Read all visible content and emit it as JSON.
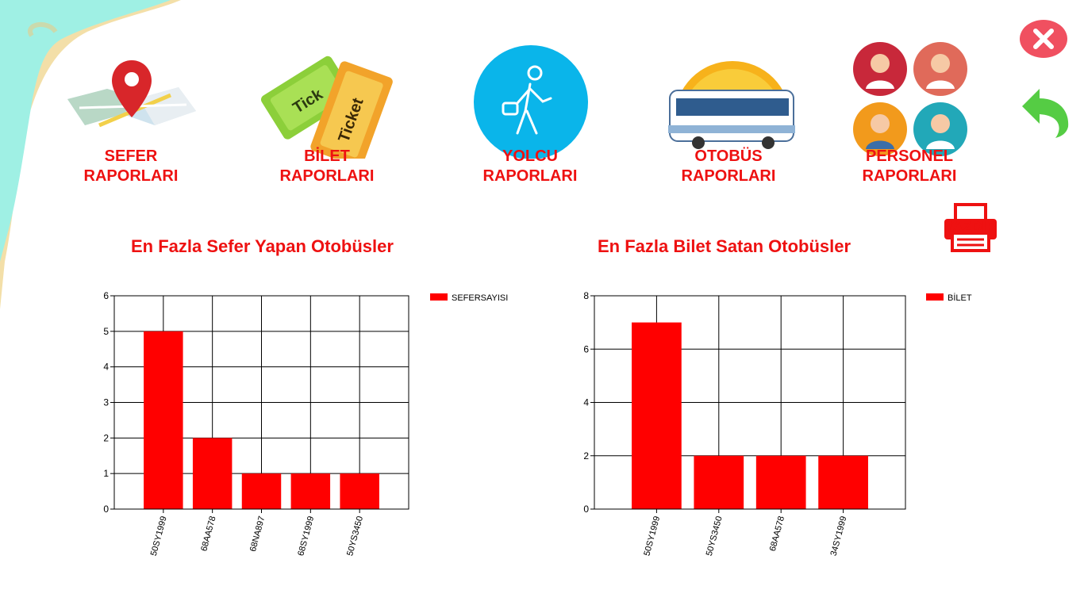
{
  "nav": {
    "items": [
      {
        "id": "sefer",
        "line1": "SEFER",
        "line2": "RAPORLARI",
        "icon": "map-pin-icon"
      },
      {
        "id": "bilet",
        "line1": "BİLET",
        "line2": "RAPORLARI",
        "icon": "ticket-icon"
      },
      {
        "id": "yolcu",
        "line1": "YOLCU",
        "line2": "RAPORLARI",
        "icon": "traveler-icon"
      },
      {
        "id": "otobus",
        "line1": "OTOBÜS",
        "line2": "RAPORLARI",
        "icon": "bus-icon"
      },
      {
        "id": "personel",
        "line1": "PERSONEL",
        "line2": "RAPORLARI",
        "icon": "staff-icon"
      }
    ]
  },
  "controls": {
    "print_label": "YAZDIR",
    "close_icon": "close-icon",
    "back_icon": "back-arrow-icon"
  },
  "colors": {
    "accent": "#ee1111",
    "bar": "#ff0000",
    "close_bg": "#f05060",
    "back_green": "#55cc44",
    "sea": "#9ff0e4",
    "sand": "#f3dfa8"
  },
  "chart_data": [
    {
      "type": "bar",
      "title": "En Fazla Sefer Yapan Otobüsler",
      "legend": "SEFERSAYISI",
      "legend_position": "top-right",
      "categories": [
        "50SY1999",
        "68AA578",
        "68NA897",
        "68SY1999",
        "50YS3450"
      ],
      "values": [
        5,
        2,
        1,
        1,
        1
      ],
      "ylim": [
        0,
        6
      ],
      "yticks": [
        0,
        1,
        2,
        3,
        4,
        5,
        6
      ],
      "grid": true
    },
    {
      "type": "bar",
      "title": "En Fazla Bilet Satan Otobüsler",
      "legend": "BİLET",
      "legend_position": "top-right",
      "categories": [
        "50SY1999",
        "50YS3450",
        "68AA578",
        "34SY1999"
      ],
      "values": [
        7,
        2,
        2,
        2
      ],
      "ylim": [
        0,
        8
      ],
      "yticks": [
        0,
        2,
        4,
        6,
        8
      ],
      "grid": true
    }
  ]
}
